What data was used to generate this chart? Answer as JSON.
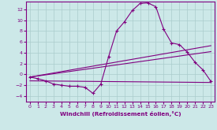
{
  "xlabel": "Windchill (Refroidissement éolien,°C)",
  "xlim": [
    -0.5,
    23.5
  ],
  "ylim": [
    -5.0,
    13.5
  ],
  "yticks": [
    -4,
    -2,
    0,
    2,
    4,
    6,
    8,
    10,
    12
  ],
  "xticks": [
    0,
    1,
    2,
    3,
    4,
    5,
    6,
    7,
    8,
    9,
    10,
    11,
    12,
    13,
    14,
    15,
    16,
    17,
    18,
    19,
    20,
    21,
    22,
    23
  ],
  "bg_color": "#cce8e8",
  "line_color": "#800080",
  "grid_color": "#aacccc",
  "series": [
    {
      "x": [
        0,
        1,
        2,
        3,
        4,
        5,
        6,
        7,
        8,
        9,
        10,
        11,
        12,
        13,
        14,
        15,
        16,
        17,
        18,
        19,
        20,
        21,
        22,
        23
      ],
      "y": [
        -0.5,
        -0.8,
        -1.2,
        -1.8,
        -2.0,
        -2.2,
        -2.2,
        -2.4,
        -3.5,
        -1.8,
        3.3,
        8.0,
        9.7,
        11.8,
        13.1,
        13.2,
        12.5,
        8.3,
        5.8,
        5.5,
        4.1,
        2.2,
        0.8,
        -1.3
      ],
      "marker": true
    },
    {
      "x": [
        0,
        23
      ],
      "y": [
        -0.5,
        5.3
      ],
      "marker": false
    },
    {
      "x": [
        0,
        23
      ],
      "y": [
        -0.5,
        4.2
      ],
      "marker": false
    },
    {
      "x": [
        0,
        23
      ],
      "y": [
        -1.2,
        -1.5
      ],
      "marker": false
    },
    {
      "x": [
        1,
        2,
        3,
        4,
        5,
        6,
        7,
        8,
        9,
        10,
        19,
        20,
        21,
        22,
        23
      ],
      "y": [
        -0.8,
        -1.2,
        -1.8,
        -2.0,
        -2.2,
        -2.2,
        -2.4,
        -3.5,
        -1.8,
        3.3,
        5.5,
        4.1,
        2.2,
        0.8,
        -1.3
      ],
      "marker": false
    }
  ]
}
